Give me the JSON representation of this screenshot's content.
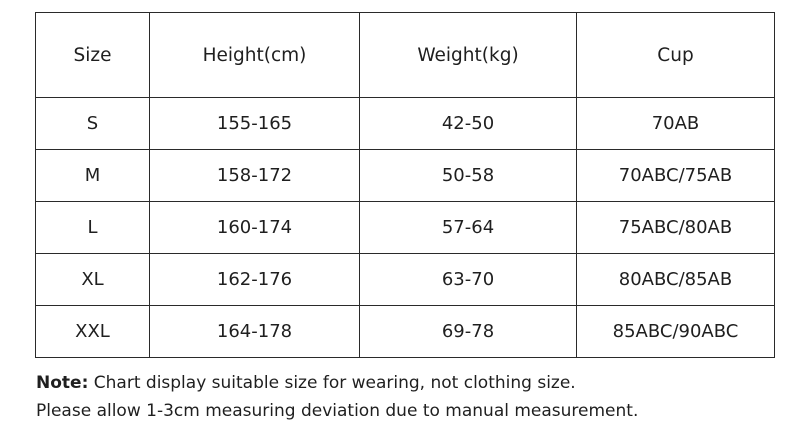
{
  "table": {
    "headers": [
      "Size",
      "Height(cm)",
      "Weight(kg)",
      "Cup"
    ],
    "rows": [
      [
        "S",
        "155-165",
        "42-50",
        "70AB"
      ],
      [
        "M",
        "158-172",
        "50-58",
        "70ABC/75AB"
      ],
      [
        "L",
        "160-174",
        "57-64",
        "75ABC/80AB"
      ],
      [
        "XL",
        "162-176",
        "63-70",
        "80ABC/85AB"
      ],
      [
        "XXL",
        "164-178",
        "69-78",
        "85ABC/90ABC"
      ]
    ]
  },
  "notes": {
    "label": "Note:",
    "line1": " Chart display suitable size for wearing, not clothing size.",
    "line2": "Please allow 1-3cm measuring deviation due to manual measurement."
  }
}
